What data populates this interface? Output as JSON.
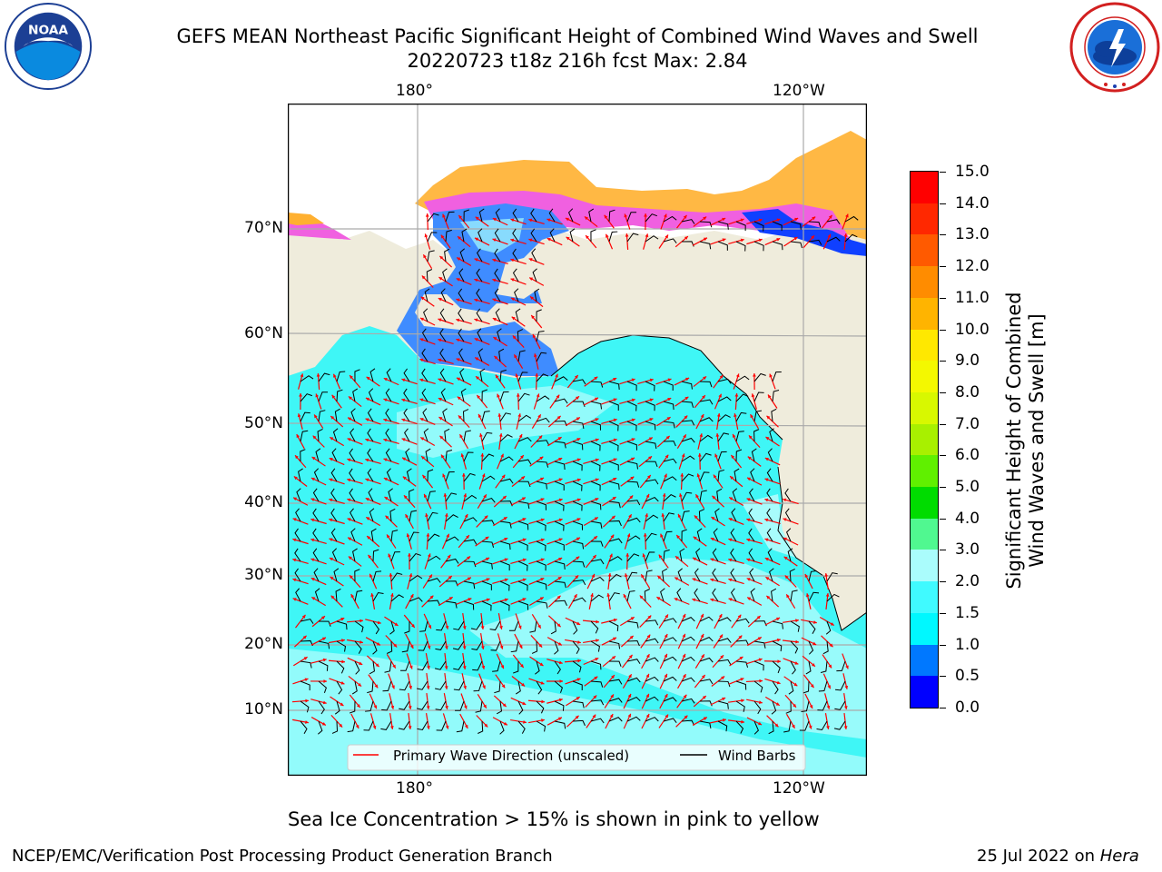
{
  "header": {
    "title_line1": "GEFS MEAN Northeast Pacific Significant Height of Combined Wind Waves and Swell",
    "title_line2": "20220723 t18z 216h fcst   Max: 2.84"
  },
  "logos": {
    "left": "noaa-logo",
    "left_text": "NOAA",
    "right": "national-weather-service-logo",
    "right_text": "NATIONAL WEATHER SERVICE"
  },
  "map": {
    "lon_ticks_top": [
      "180°",
      "120°W"
    ],
    "lon_ticks_bottom": [
      "180°",
      "120°W"
    ],
    "lat_ticks": [
      "70°N",
      "60°N",
      "50°N",
      "40°N",
      "30°N",
      "20°N",
      "10°N"
    ],
    "legend": {
      "wave_direction": "Primary Wave Direction (unscaled)",
      "wind_barbs": "Wind Barbs"
    },
    "colors": {
      "land": "#efecdc",
      "ocean_main": "#3ff6f6",
      "ocean_light": "#a8fcfc",
      "shallow": "#3f8cff",
      "ice_pink": "#f060e0",
      "ice_orange": "#ffb030",
      "ice_yellow": "#ffe060",
      "arrow": "#ff0000",
      "barb": "#000000"
    }
  },
  "colorbar": {
    "title_line1": "Significant Height of Combined",
    "title_line2": "Wind Waves and Swell [m]",
    "ticks": [
      "0.0",
      "0.5",
      "1.0",
      "1.5",
      "2.0",
      "3.0",
      "4.0",
      "5.0",
      "6.0",
      "7.0",
      "8.0",
      "9.0",
      "10.0",
      "11.0",
      "12.0",
      "13.0",
      "14.0",
      "15.0"
    ],
    "colors": [
      "#0000ff",
      "#0078ff",
      "#00f8ff",
      "#40faff",
      "#aafcfc",
      "#50f890",
      "#00dc00",
      "#60f000",
      "#a8f000",
      "#d8f800",
      "#f4f800",
      "#ffe800",
      "#ffb400",
      "#ff8c00",
      "#ff5a00",
      "#ff2800",
      "#ff0000"
    ]
  },
  "subcaption": "Sea Ice Concentration > 15% is shown in pink to yellow",
  "footer": {
    "left": "NCEP/EMC/Verification Post Processing Product Generation Branch",
    "right_prefix": "25 Jul 2022 on ",
    "right_host": "Hera"
  }
}
